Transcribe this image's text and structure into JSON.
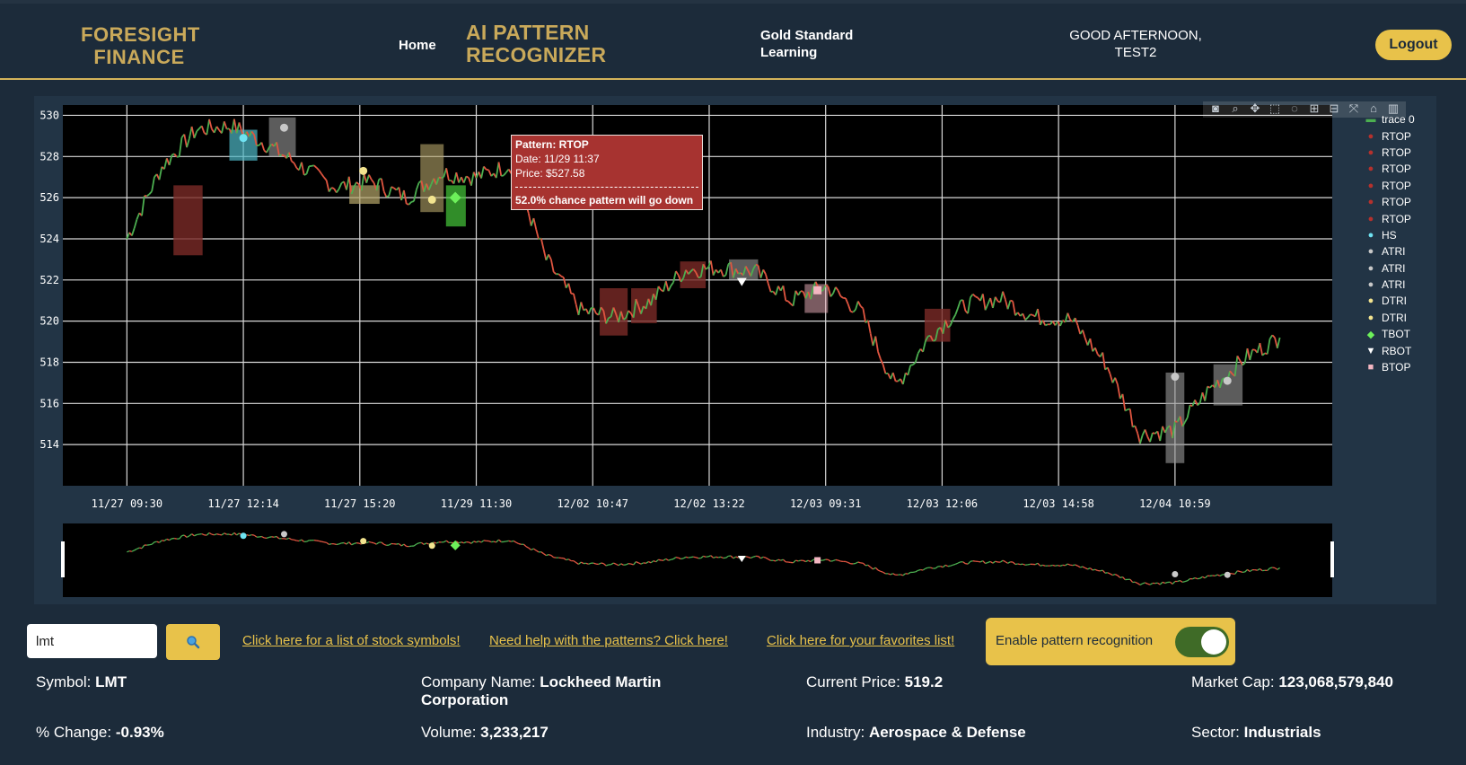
{
  "header": {
    "brand_line1": "FORESIGHT",
    "brand_line2": "FINANCE",
    "home": "Home",
    "app_title_line1": "AI PATTERN",
    "app_title_line2": "RECOGNIZER",
    "gold_line1": "Gold Standard",
    "gold_line2": "Learning",
    "greeting_line1": "GOOD AFTERNOON,",
    "greeting_line2": "TEST2",
    "logout": "Logout"
  },
  "modebar_icons": [
    "camera-icon",
    "zoom-icon",
    "pan-icon",
    "box-select-icon",
    "lasso-icon",
    "zoom-in-icon",
    "zoom-out-icon",
    "autoscale-icon",
    "home-icon",
    "plotly-logo-icon"
  ],
  "tooltip": {
    "pattern": "Pattern: RTOP",
    "date": "Date: 11/29 11:37",
    "price": "Price: $527.58",
    "chance": "52.0% chance pattern will go down"
  },
  "legend": [
    {
      "label": "trace 0",
      "symbol": "candle",
      "color": "#4caf50"
    },
    {
      "label": "RTOP",
      "symbol": "dot",
      "color": "#b5312d"
    },
    {
      "label": "RTOP",
      "symbol": "dot",
      "color": "#b5312d"
    },
    {
      "label": "RTOP",
      "symbol": "dot",
      "color": "#b5312d"
    },
    {
      "label": "RTOP",
      "symbol": "dot",
      "color": "#b5312d"
    },
    {
      "label": "RTOP",
      "symbol": "dot",
      "color": "#b5312d"
    },
    {
      "label": "RTOP",
      "symbol": "dot",
      "color": "#b5312d"
    },
    {
      "label": "HS",
      "symbol": "dot",
      "color": "#6fe3f2"
    },
    {
      "label": "ATRI",
      "symbol": "dot",
      "color": "#c8c8c8"
    },
    {
      "label": "ATRI",
      "symbol": "dot",
      "color": "#c8c8c8"
    },
    {
      "label": "ATRI",
      "symbol": "dot",
      "color": "#c8c8c8"
    },
    {
      "label": "DTRI",
      "symbol": "dot",
      "color": "#f3e48f"
    },
    {
      "label": "DTRI",
      "symbol": "dot",
      "color": "#f3e48f"
    },
    {
      "label": "TBOT",
      "symbol": "diamond",
      "color": "#6df05a"
    },
    {
      "label": "RBOT",
      "symbol": "triangle",
      "color": "#ffffff"
    },
    {
      "label": "BTOP",
      "symbol": "square",
      "color": "#f4b6c2"
    }
  ],
  "chart_data": {
    "type": "line",
    "ylim": [
      512,
      530.5
    ],
    "y_ticks": [
      "530",
      "528",
      "526",
      "524",
      "522",
      "520",
      "518",
      "516",
      "514"
    ],
    "x_ticks": [
      "11/27 09:30",
      "11/27 12:14",
      "11/27 15:20",
      "11/29 11:30",
      "12/02 10:47",
      "12/02 13:22",
      "12/03 09:31",
      "12/03 12:06",
      "12/03 14:58",
      "12/04 10:59"
    ],
    "x": [
      0,
      0.3,
      0.6,
      0.9,
      1.2,
      1.5,
      1.8,
      2.1,
      2.4,
      2.7,
      3.0,
      3.3,
      3.6,
      3.9,
      4.2,
      4.5,
      4.8,
      5.1,
      5.4,
      5.7,
      6.0,
      6.3,
      6.6,
      6.9,
      7.2,
      7.5,
      7.8,
      8.1,
      8.4,
      8.7,
      9.0,
      9.3,
      9.6,
      9.9
    ],
    "y": [
      524.0,
      527.5,
      529.3,
      529.5,
      528.6,
      527.5,
      526.5,
      526.8,
      526.0,
      527.2,
      527.0,
      527.6,
      523.0,
      520.5,
      520.2,
      521.0,
      522.5,
      522.6,
      522.4,
      521.0,
      521.7,
      520.5,
      516.8,
      519.3,
      520.8,
      521.1,
      520.2,
      520.1,
      518.0,
      514.5,
      514.7,
      516.7,
      518.2,
      519.2
    ],
    "pattern_boxes": [
      {
        "x0": 0.4,
        "x1": 0.65,
        "y0": 523.2,
        "y1": 526.6,
        "color": "#7a2b27",
        "opacity": 0.8
      },
      {
        "x0": 0.88,
        "x1": 1.12,
        "y0": 527.8,
        "y1": 529.3,
        "color": "#4fb9c8",
        "opacity": 0.7
      },
      {
        "x0": 1.22,
        "x1": 1.45,
        "y0": 528.0,
        "y1": 529.9,
        "color": "#9a9a9a",
        "opacity": 0.6
      },
      {
        "x0": 1.91,
        "x1": 2.17,
        "y0": 525.7,
        "y1": 526.6,
        "color": "#b7a66a",
        "opacity": 0.7
      },
      {
        "x0": 2.52,
        "x1": 2.72,
        "y0": 525.3,
        "y1": 528.6,
        "color": "#b7a66a",
        "opacity": 0.6
      },
      {
        "x0": 2.74,
        "x1": 2.91,
        "y0": 524.6,
        "y1": 526.6,
        "color": "#46c93a",
        "opacity": 0.7
      },
      {
        "x0": 3.43,
        "x1": 3.62,
        "y0": 526.6,
        "y1": 528.3,
        "color": "#7a2b27",
        "opacity": 0.8
      },
      {
        "x0": 4.06,
        "x1": 4.3,
        "y0": 519.3,
        "y1": 521.6,
        "color": "#7a2b27",
        "opacity": 0.8
      },
      {
        "x0": 4.33,
        "x1": 4.55,
        "y0": 519.9,
        "y1": 521.6,
        "color": "#7a2b27",
        "opacity": 0.8
      },
      {
        "x0": 4.75,
        "x1": 4.97,
        "y0": 521.6,
        "y1": 522.9,
        "color": "#7a2b27",
        "opacity": 0.8
      },
      {
        "x0": 5.17,
        "x1": 5.42,
        "y0": 522.0,
        "y1": 523.0,
        "color": "#9a9a9a",
        "opacity": 0.6
      },
      {
        "x0": 5.82,
        "x1": 6.02,
        "y0": 520.4,
        "y1": 521.8,
        "color": "#f4b6c2",
        "opacity": 0.5
      },
      {
        "x0": 6.85,
        "x1": 7.07,
        "y0": 519.0,
        "y1": 520.6,
        "color": "#7a2b27",
        "opacity": 0.8
      },
      {
        "x0": 8.92,
        "x1": 9.08,
        "y0": 513.1,
        "y1": 517.5,
        "color": "#9a9a9a",
        "opacity": 0.6
      },
      {
        "x0": 9.33,
        "x1": 9.58,
        "y0": 515.9,
        "y1": 517.9,
        "color": "#9a9a9a",
        "opacity": 0.6
      }
    ],
    "markers": [
      {
        "x": 1.0,
        "y": 528.9,
        "symbol": "dot",
        "color": "#6fe3f2"
      },
      {
        "x": 1.35,
        "y": 529.4,
        "symbol": "dot",
        "color": "#c8c8c8"
      },
      {
        "x": 2.03,
        "y": 527.3,
        "symbol": "dot",
        "color": "#f3e48f"
      },
      {
        "x": 2.62,
        "y": 525.9,
        "symbol": "dot",
        "color": "#f3e48f"
      },
      {
        "x": 2.82,
        "y": 526.0,
        "symbol": "diamond",
        "color": "#6df05a"
      },
      {
        "x": 5.28,
        "y": 521.9,
        "symbol": "triangle",
        "color": "#ffffff"
      },
      {
        "x": 5.93,
        "y": 521.5,
        "symbol": "square",
        "color": "#f4b6c2"
      },
      {
        "x": 9.0,
        "y": 517.3,
        "symbol": "dot",
        "color": "#c8c8c8"
      },
      {
        "x": 9.45,
        "y": 517.1,
        "symbol": "dot",
        "color": "#c8c8c8"
      }
    ],
    "line_color_up": "#4caf50",
    "line_color_down": "#e05540"
  },
  "controls": {
    "search_value": "lmt",
    "search_icon": "search-icon",
    "link_symbols": "Click here for a list of stock symbols!",
    "link_help": "Need help with the patterns? Click here!",
    "link_favorites": "Click here for your favorites list!",
    "toggle_label": "Enable pattern recognition",
    "toggle_on": true
  },
  "stock_info": {
    "symbol_label": "Symbol:",
    "symbol": "LMT",
    "company_label": "Company Name:",
    "company_line1": "Lockheed Martin",
    "company_line2": "Corporation",
    "price_label": "Current Price:",
    "price": "519.2",
    "mcap_label": "Market Cap:",
    "mcap": "123,068,579,840",
    "change_label": "% Change:",
    "change": "-0.93%",
    "volume_label": "Volume:",
    "volume": "3,233,217",
    "industry_label": "Industry:",
    "industry": "Aerospace & Defense",
    "sector_label": "Sector:",
    "sector": "Industrials"
  },
  "colors": {
    "accent": "#e8c24a",
    "brand": "#c9a95a",
    "background": "#1c2b3a"
  }
}
